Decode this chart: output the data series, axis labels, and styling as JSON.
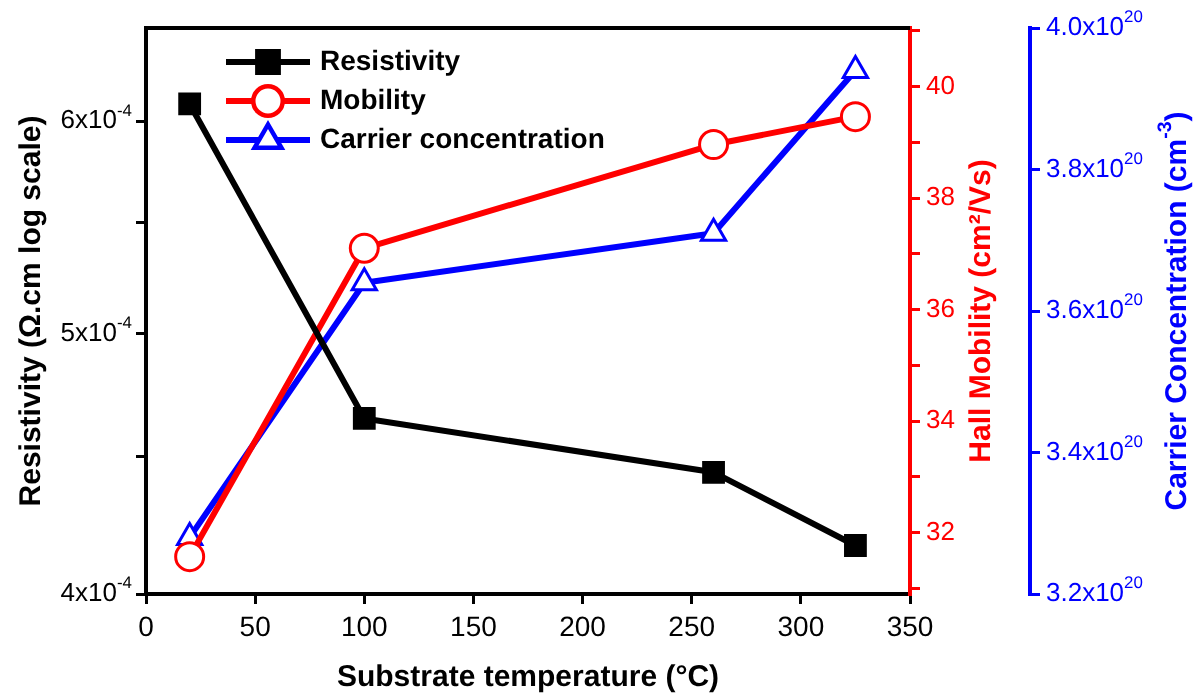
{
  "chart_data": {
    "type": "line",
    "xlabel": "Substrate temperature (°C)",
    "ylabel": "Resistivity (Ω.cm log scale)",
    "y2label": "Hall Mobility (cm²/Vs)",
    "y3label": "Carrier Concentration (cm$^{-3}$)",
    "xlim": [
      0,
      350
    ],
    "xticks": [
      0,
      50,
      100,
      150,
      200,
      250,
      300,
      350
    ],
    "ylim": [
      0.0004,
      0.00065
    ],
    "yticks": [
      {
        "value": 0.0004,
        "label": "4x10$^{-4}$"
      },
      {
        "value": 0.00045,
        "label": null
      },
      {
        "value": 0.0005,
        "label": "5x10$^{-4}$"
      },
      {
        "value": 0.00055,
        "label": null
      },
      {
        "value": 0.0006,
        "label": "6x10$^{-4}$"
      }
    ],
    "y2lim": [
      30.9,
      41.05
    ],
    "y2ticks": [
      {
        "value": 31,
        "label": null
      },
      32,
      {
        "value": 33,
        "label": null
      },
      34,
      {
        "value": 35,
        "label": null
      },
      36,
      {
        "value": 37,
        "label": null
      },
      38,
      {
        "value": 39,
        "label": null
      },
      40,
      {
        "value": 41,
        "label": null
      }
    ],
    "y3lim": [
      3.2e+20,
      4e+20
    ],
    "y3ticks": [
      {
        "value": 3.2e+20,
        "label": "3.2x10$^{20}$"
      },
      {
        "value": 3.4e+20,
        "label": "3.4x10$^{20}$"
      },
      {
        "value": 3.6e+20,
        "label": "3.6x10$^{20}$"
      },
      {
        "value": 3.8e+20,
        "label": "3.8x10$^{20}$"
      },
      {
        "value": 4e+20,
        "label": "4.0x10$^{20}$"
      }
    ],
    "x": [
      20,
      100,
      260,
      325
    ],
    "log": "y",
    "grid": false,
    "legend": "top left",
    "line_style": "solid",
    "series": [
      {
        "name": "Resistivity",
        "color": "#000000",
        "marker": "square",
        "values": [
          0.000609,
          0.000465,
          0.000444,
          0.000417
        ]
      },
      {
        "name": "Mobility",
        "color": "#ff0000",
        "marker": "circle",
        "axis": "y2",
        "values": [
          31.57,
          37.1,
          38.96,
          39.46
        ]
      },
      {
        "name": "Carrier concentration",
        "color": "#0000ff",
        "marker": "triangle",
        "axis": "y3",
        "values": [
          3.28e+20,
          3.64e+20,
          3.71e+20,
          3.94e+20
        ]
      }
    ]
  }
}
